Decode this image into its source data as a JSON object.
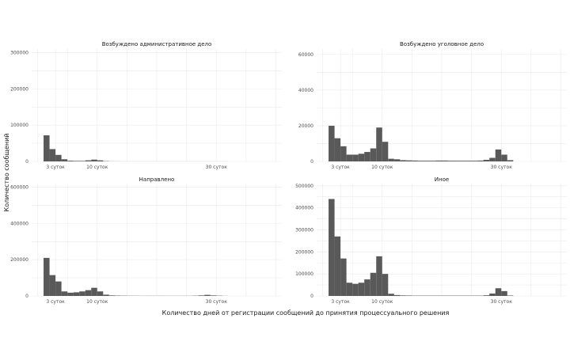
{
  "x_axis_title": "Количество дней от регистрации сообщений до принятия процессуального решения",
  "y_axis_title": "Количество сообщений",
  "chart_data": [
    {
      "type": "bar",
      "title": "Возбуждено административное дело",
      "x_ticks": [
        {
          "x": 3,
          "label": "3 суток"
        },
        {
          "x": 10,
          "label": "10 суток"
        },
        {
          "x": 30,
          "label": "30 суток"
        }
      ],
      "y_ticks": [
        {
          "y": 0,
          "label": "0"
        },
        {
          "y": 100000,
          "label": "100000"
        },
        {
          "y": 200000,
          "label": "200000"
        },
        {
          "y": 300000,
          "label": "300000"
        }
      ],
      "ylim": [
        0,
        310000
      ],
      "series": [
        {
          "values": [
            0,
            72000,
            34000,
            18000,
            6000,
            2000,
            1500,
            1500,
            3000,
            5000,
            3000,
            800,
            300,
            200,
            100,
            100,
            100,
            100,
            100,
            100,
            100,
            100,
            100,
            100,
            100,
            100,
            100,
            100,
            100,
            100,
            100,
            100
          ]
        }
      ]
    },
    {
      "type": "bar",
      "title": "Возбуждено уголовное дело",
      "x_ticks": [
        {
          "x": 3,
          "label": "3 суток"
        },
        {
          "x": 10,
          "label": "10 суток"
        },
        {
          "x": 30,
          "label": "30 суток"
        }
      ],
      "y_ticks": [
        {
          "y": 0,
          "label": "0"
        },
        {
          "y": 20000,
          "label": "20000"
        },
        {
          "y": 40000,
          "label": "40000"
        },
        {
          "y": 60000,
          "label": "60000"
        }
      ],
      "ylim": [
        0,
        63000
      ],
      "series": [
        {
          "values": [
            0,
            20000,
            13000,
            8500,
            3800,
            3800,
            4300,
            5300,
            7300,
            19000,
            11000,
            1500,
            1200,
            700,
            600,
            500,
            400,
            400,
            400,
            500,
            500,
            400,
            400,
            400,
            400,
            400,
            500,
            900,
            2000,
            6700,
            3800,
            700
          ]
        }
      ]
    },
    {
      "type": "bar",
      "title": "Направлено",
      "x_ticks": [
        {
          "x": 3,
          "label": "3 суток"
        },
        {
          "x": 10,
          "label": "10 суток"
        },
        {
          "x": 30,
          "label": "30 суток"
        }
      ],
      "y_ticks": [
        {
          "y": 0,
          "label": "0"
        },
        {
          "y": 200000,
          "label": "200000"
        },
        {
          "y": 400000,
          "label": "400000"
        },
        {
          "y": 600000,
          "label": "600000"
        }
      ],
      "ylim": [
        0,
        620000
      ],
      "series": [
        {
          "values": [
            0,
            210000,
            115000,
            80000,
            25000,
            18000,
            20000,
            25000,
            32000,
            45000,
            25000,
            7000,
            3000,
            2000,
            1500,
            1000,
            1000,
            800,
            800,
            800,
            800,
            800,
            800,
            800,
            800,
            800,
            1500,
            3000,
            6000,
            3000,
            1500,
            500
          ]
        }
      ]
    },
    {
      "type": "bar",
      "title": "Иное",
      "x_ticks": [
        {
          "x": 3,
          "label": "3 суток"
        },
        {
          "x": 10,
          "label": "10 суток"
        },
        {
          "x": 30,
          "label": "30 суток"
        }
      ],
      "y_ticks": [
        {
          "y": 0,
          "label": "0"
        },
        {
          "y": 100000,
          "label": "100000"
        },
        {
          "y": 200000,
          "label": "200000"
        },
        {
          "y": 300000,
          "label": "300000"
        },
        {
          "y": 400000,
          "label": "400000"
        },
        {
          "y": 500000,
          "label": "500000"
        }
      ],
      "ylim": [
        0,
        510000
      ],
      "series": [
        {
          "values": [
            0,
            440000,
            270000,
            170000,
            60000,
            55000,
            60000,
            75000,
            105000,
            180000,
            100000,
            10000,
            4000,
            2500,
            2000,
            1500,
            1500,
            1500,
            1500,
            1500,
            1500,
            1500,
            1500,
            1500,
            1500,
            1500,
            1500,
            3000,
            11000,
            35000,
            22000,
            2000
          ]
        }
      ]
    }
  ]
}
